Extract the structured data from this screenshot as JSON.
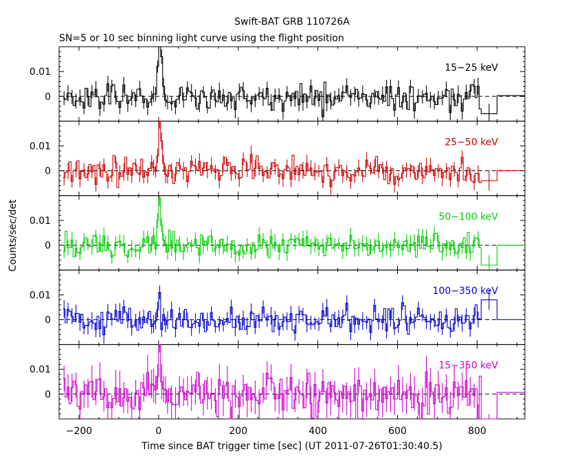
{
  "chart_data": {
    "type": "line",
    "title": "Swift-BAT GRB 110726A",
    "subtitle": "SN=5 or 10 sec binning light curve using the flight position",
    "xlabel": "Time since BAT trigger time [sec] (UT 2011-07-26T01:30:40.5)",
    "ylabel": "Counts/sec/det",
    "xlim": [
      -250,
      920
    ],
    "xticks": [
      -200,
      0,
      200,
      400,
      600,
      800
    ],
    "xtick_labels": [
      "−200",
      "0",
      "200",
      "400",
      "600",
      "800"
    ],
    "ylim": [
      -0.01,
      0.02
    ],
    "yticks": [
      0,
      0.01
    ],
    "ytick_labels": [
      "0",
      "0.01"
    ],
    "panels": [
      {
        "name": "15−25 keV",
        "color": "#000000",
        "seed": 11,
        "noise": 0.0026,
        "err": 0.003,
        "peak": [
          0.012,
          0.03,
          0.016,
          0.004
        ],
        "tail_level": -0.007,
        "tail2_level": 0.0003
      },
      {
        "name": "25−50 keV",
        "color": "#cc0000",
        "seed": 23,
        "noise": 0.0025,
        "err": 0.003,
        "peak": [
          0.006,
          0.02,
          0.012,
          0.003
        ],
        "tail_level": -0.004,
        "tail2_level": 0.0001
      },
      {
        "name": "50−100 keV",
        "color": "#00cc00",
        "seed": 37,
        "noise": 0.0023,
        "err": 0.003,
        "peak": [
          0.01,
          0.019,
          0.008,
          0.002
        ],
        "tail_level": -0.008,
        "tail2_level": 0.0
      },
      {
        "name": "100−350 keV",
        "color": "#0000cc",
        "seed": 41,
        "noise": 0.0026,
        "err": 0.003,
        "peak": [
          0.004,
          0.011,
          -0.004,
          0.002
        ],
        "tail_level": 0.008,
        "tail2_level": 0.0
      },
      {
        "name": "15−350 keV",
        "color": "#cc00cc",
        "seed": 53,
        "noise": 0.0045,
        "err": 0.006,
        "peak": [
          0.007,
          0.022,
          0.005,
          0.002
        ],
        "tail_level": -0.012,
        "tail2_level": 0.0007
      }
    ],
    "bin_width_sec": 5,
    "data_start": -240,
    "data_end": 810,
    "tail_bins": [
      [
        810,
        850
      ],
      [
        850,
        920
      ]
    ],
    "zero_line_dashed": true,
    "grid": false,
    "legend": "top-right label per panel"
  }
}
